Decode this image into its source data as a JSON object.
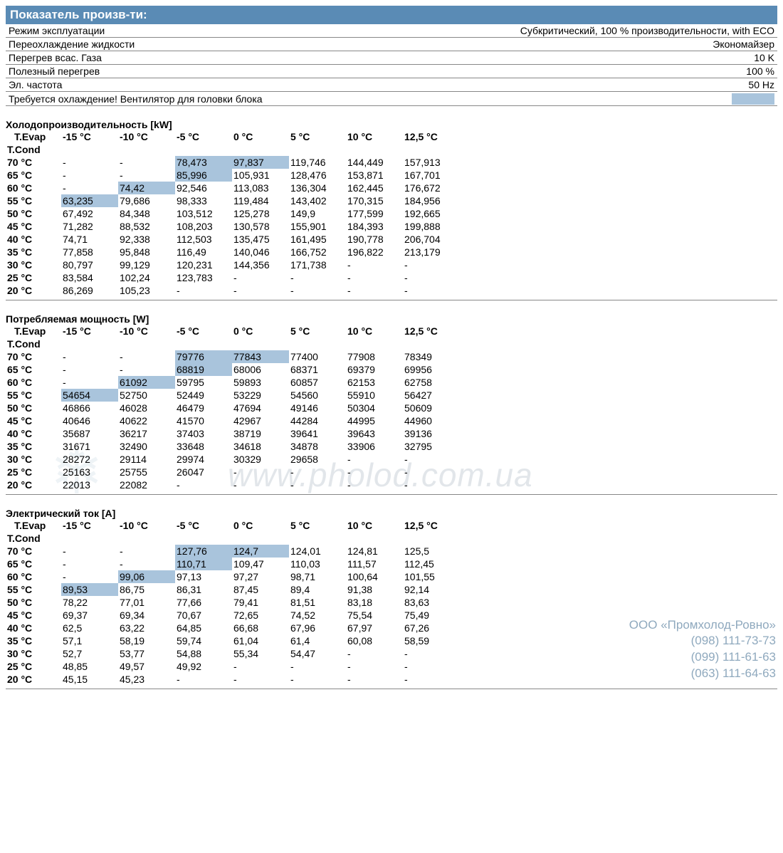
{
  "colors": {
    "header_bg": "#5a8bb5",
    "header_fg": "#ffffff",
    "highlight_bg": "#a9c4dc",
    "border": "#888888",
    "watermark": "#dfe4e8",
    "company_text": "#8fa9be"
  },
  "header": {
    "title": "Показатель произв-ти:"
  },
  "params": [
    {
      "label": "Режим эксплуатации",
      "value": "Субкритический, 100 % производительности, with ECO"
    },
    {
      "label": "Переохлаждение жидкости",
      "value": "Экономайзер"
    },
    {
      "label": "Перегрев всас. Газа",
      "value": "10 K"
    },
    {
      "label": "Полезный перегрев",
      "value": "100 %"
    },
    {
      "label": "Эл. частота",
      "value": "50 Hz"
    }
  ],
  "cooling_note": "Требуется охлаждение! Вентилятор для головки блока",
  "evap_cols": [
    "-15 °C",
    "-10 °C",
    "-5 °C",
    "0 °C",
    "5 °C",
    "10 °C",
    "12,5 °C"
  ],
  "evap_label": "T.Evap",
  "cond_label": "T.Cond",
  "tables": [
    {
      "title": "Холодопроизводительность [kW]",
      "rows": [
        {
          "cond": "70 °C",
          "cells": [
            {
              "v": "-"
            },
            {
              "v": "-"
            },
            {
              "v": "78,473",
              "hl": true
            },
            {
              "v": "97,837",
              "hl": true
            },
            {
              "v": "119,746"
            },
            {
              "v": "144,449"
            },
            {
              "v": "157,913"
            }
          ]
        },
        {
          "cond": "65 °C",
          "cells": [
            {
              "v": "-"
            },
            {
              "v": "-"
            },
            {
              "v": "85,996",
              "hl": true
            },
            {
              "v": "105,931"
            },
            {
              "v": "128,476"
            },
            {
              "v": "153,871"
            },
            {
              "v": "167,701"
            }
          ]
        },
        {
          "cond": "60 °C",
          "cells": [
            {
              "v": "-"
            },
            {
              "v": "74,42",
              "hl": true
            },
            {
              "v": "92,546"
            },
            {
              "v": "113,083"
            },
            {
              "v": "136,304"
            },
            {
              "v": "162,445"
            },
            {
              "v": "176,672"
            }
          ]
        },
        {
          "cond": "55 °C",
          "cells": [
            {
              "v": "63,235",
              "hl": true
            },
            {
              "v": "79,686"
            },
            {
              "v": "98,333"
            },
            {
              "v": "119,484"
            },
            {
              "v": "143,402"
            },
            {
              "v": "170,315"
            },
            {
              "v": "184,956"
            }
          ]
        },
        {
          "cond": "50 °C",
          "cells": [
            {
              "v": "67,492"
            },
            {
              "v": "84,348"
            },
            {
              "v": "103,512"
            },
            {
              "v": "125,278"
            },
            {
              "v": "149,9"
            },
            {
              "v": "177,599"
            },
            {
              "v": "192,665"
            }
          ]
        },
        {
          "cond": "45 °C",
          "cells": [
            {
              "v": "71,282"
            },
            {
              "v": "88,532"
            },
            {
              "v": "108,203"
            },
            {
              "v": "130,578"
            },
            {
              "v": "155,901"
            },
            {
              "v": "184,393"
            },
            {
              "v": "199,888"
            }
          ]
        },
        {
          "cond": "40 °C",
          "cells": [
            {
              "v": "74,71"
            },
            {
              "v": "92,338"
            },
            {
              "v": "112,503"
            },
            {
              "v": "135,475"
            },
            {
              "v": "161,495"
            },
            {
              "v": "190,778"
            },
            {
              "v": "206,704"
            }
          ]
        },
        {
          "cond": "35 °C",
          "cells": [
            {
              "v": "77,858"
            },
            {
              "v": "95,848"
            },
            {
              "v": "116,49"
            },
            {
              "v": "140,046"
            },
            {
              "v": "166,752"
            },
            {
              "v": "196,822"
            },
            {
              "v": "213,179"
            }
          ]
        },
        {
          "cond": "30 °C",
          "cells": [
            {
              "v": "80,797"
            },
            {
              "v": "99,129"
            },
            {
              "v": "120,231"
            },
            {
              "v": "144,356"
            },
            {
              "v": "171,738"
            },
            {
              "v": "-"
            },
            {
              "v": "-"
            }
          ]
        },
        {
          "cond": "25 °C",
          "cells": [
            {
              "v": "83,584"
            },
            {
              "v": "102,24"
            },
            {
              "v": "123,783"
            },
            {
              "v": "-"
            },
            {
              "v": "-"
            },
            {
              "v": "-"
            },
            {
              "v": "-"
            }
          ]
        },
        {
          "cond": "20 °C",
          "cells": [
            {
              "v": "86,269"
            },
            {
              "v": "105,23"
            },
            {
              "v": "-"
            },
            {
              "v": "-"
            },
            {
              "v": "-"
            },
            {
              "v": "-"
            },
            {
              "v": "-"
            }
          ]
        }
      ]
    },
    {
      "title": "Потребляемая мощность [W]",
      "rows": [
        {
          "cond": "70 °C",
          "cells": [
            {
              "v": "-"
            },
            {
              "v": "-"
            },
            {
              "v": "79776",
              "hl": true
            },
            {
              "v": "77843",
              "hl": true
            },
            {
              "v": "77400"
            },
            {
              "v": "77908"
            },
            {
              "v": "78349"
            }
          ]
        },
        {
          "cond": "65 °C",
          "cells": [
            {
              "v": "-"
            },
            {
              "v": "-"
            },
            {
              "v": "68819",
              "hl": true
            },
            {
              "v": "68006"
            },
            {
              "v": "68371"
            },
            {
              "v": "69379"
            },
            {
              "v": "69956"
            }
          ]
        },
        {
          "cond": "60 °C",
          "cells": [
            {
              "v": "-"
            },
            {
              "v": "61092",
              "hl": true
            },
            {
              "v": "59795"
            },
            {
              "v": "59893"
            },
            {
              "v": "60857"
            },
            {
              "v": "62153"
            },
            {
              "v": "62758"
            }
          ]
        },
        {
          "cond": "55 °C",
          "cells": [
            {
              "v": "54654",
              "hl": true
            },
            {
              "v": "52750"
            },
            {
              "v": "52449"
            },
            {
              "v": "53229"
            },
            {
              "v": "54560"
            },
            {
              "v": "55910"
            },
            {
              "v": "56427"
            }
          ]
        },
        {
          "cond": "50 °C",
          "cells": [
            {
              "v": "46866"
            },
            {
              "v": "46028"
            },
            {
              "v": "46479"
            },
            {
              "v": "47694"
            },
            {
              "v": "49146"
            },
            {
              "v": "50304"
            },
            {
              "v": "50609"
            }
          ]
        },
        {
          "cond": "45 °C",
          "cells": [
            {
              "v": "40646"
            },
            {
              "v": "40622"
            },
            {
              "v": "41570"
            },
            {
              "v": "42967"
            },
            {
              "v": "44284"
            },
            {
              "v": "44995"
            },
            {
              "v": "44960"
            }
          ]
        },
        {
          "cond": "40 °C",
          "cells": [
            {
              "v": "35687"
            },
            {
              "v": "36217"
            },
            {
              "v": "37403"
            },
            {
              "v": "38719"
            },
            {
              "v": "39641"
            },
            {
              "v": "39643"
            },
            {
              "v": "39136"
            }
          ]
        },
        {
          "cond": "35 °C",
          "cells": [
            {
              "v": "31671"
            },
            {
              "v": "32490"
            },
            {
              "v": "33648"
            },
            {
              "v": "34618"
            },
            {
              "v": "34878"
            },
            {
              "v": "33906"
            },
            {
              "v": "32795"
            }
          ]
        },
        {
          "cond": "30 °C",
          "cells": [
            {
              "v": "28272"
            },
            {
              "v": "29114"
            },
            {
              "v": "29974"
            },
            {
              "v": "30329"
            },
            {
              "v": "29658"
            },
            {
              "v": "-"
            },
            {
              "v": "-"
            }
          ]
        },
        {
          "cond": "25 °C",
          "cells": [
            {
              "v": "25163"
            },
            {
              "v": "25755"
            },
            {
              "v": "26047"
            },
            {
              "v": "-"
            },
            {
              "v": "-"
            },
            {
              "v": "-"
            },
            {
              "v": "-"
            }
          ]
        },
        {
          "cond": "20 °C",
          "cells": [
            {
              "v": "22013"
            },
            {
              "v": "22082"
            },
            {
              "v": "-"
            },
            {
              "v": "-"
            },
            {
              "v": "-"
            },
            {
              "v": "-"
            },
            {
              "v": "-"
            }
          ]
        }
      ]
    },
    {
      "title": "Электрический ток [A]",
      "rows": [
        {
          "cond": "70 °C",
          "cells": [
            {
              "v": "-"
            },
            {
              "v": "-"
            },
            {
              "v": "127,76",
              "hl": true
            },
            {
              "v": "124,7",
              "hl": true
            },
            {
              "v": "124,01"
            },
            {
              "v": "124,81"
            },
            {
              "v": "125,5"
            }
          ]
        },
        {
          "cond": "65 °C",
          "cells": [
            {
              "v": "-"
            },
            {
              "v": "-"
            },
            {
              "v": "110,71",
              "hl": true
            },
            {
              "v": "109,47"
            },
            {
              "v": "110,03"
            },
            {
              "v": "111,57"
            },
            {
              "v": "112,45"
            }
          ]
        },
        {
          "cond": "60 °C",
          "cells": [
            {
              "v": "-"
            },
            {
              "v": "99,06",
              "hl": true
            },
            {
              "v": "97,13"
            },
            {
              "v": "97,27"
            },
            {
              "v": "98,71"
            },
            {
              "v": "100,64"
            },
            {
              "v": "101,55"
            }
          ]
        },
        {
          "cond": "55 °C",
          "cells": [
            {
              "v": "89,53",
              "hl": true
            },
            {
              "v": "86,75"
            },
            {
              "v": "86,31"
            },
            {
              "v": "87,45"
            },
            {
              "v": "89,4"
            },
            {
              "v": "91,38"
            },
            {
              "v": "92,14"
            }
          ]
        },
        {
          "cond": "50 °C",
          "cells": [
            {
              "v": "78,22"
            },
            {
              "v": "77,01"
            },
            {
              "v": "77,66"
            },
            {
              "v": "79,41"
            },
            {
              "v": "81,51"
            },
            {
              "v": "83,18"
            },
            {
              "v": "83,63"
            }
          ]
        },
        {
          "cond": "45 °C",
          "cells": [
            {
              "v": "69,37"
            },
            {
              "v": "69,34"
            },
            {
              "v": "70,67"
            },
            {
              "v": "72,65"
            },
            {
              "v": "74,52"
            },
            {
              "v": "75,54"
            },
            {
              "v": "75,49"
            }
          ]
        },
        {
          "cond": "40 °C",
          "cells": [
            {
              "v": "62,5"
            },
            {
              "v": "63,22"
            },
            {
              "v": "64,85"
            },
            {
              "v": "66,68"
            },
            {
              "v": "67,96"
            },
            {
              "v": "67,97"
            },
            {
              "v": "67,26"
            }
          ]
        },
        {
          "cond": "35 °C",
          "cells": [
            {
              "v": "57,1"
            },
            {
              "v": "58,19"
            },
            {
              "v": "59,74"
            },
            {
              "v": "61,04"
            },
            {
              "v": "61,4"
            },
            {
              "v": "60,08"
            },
            {
              "v": "58,59"
            }
          ]
        },
        {
          "cond": "30 °C",
          "cells": [
            {
              "v": "52,7"
            },
            {
              "v": "53,77"
            },
            {
              "v": "54,88"
            },
            {
              "v": "55,34"
            },
            {
              "v": "54,47"
            },
            {
              "v": "-"
            },
            {
              "v": "-"
            }
          ]
        },
        {
          "cond": "25 °C",
          "cells": [
            {
              "v": "48,85"
            },
            {
              "v": "49,57"
            },
            {
              "v": "49,92"
            },
            {
              "v": "-"
            },
            {
              "v": "-"
            },
            {
              "v": "-"
            },
            {
              "v": "-"
            }
          ]
        },
        {
          "cond": "20 °C",
          "cells": [
            {
              "v": "45,15"
            },
            {
              "v": "45,23"
            },
            {
              "v": "-"
            },
            {
              "v": "-"
            },
            {
              "v": "-"
            },
            {
              "v": "-"
            },
            {
              "v": "-"
            }
          ]
        }
      ]
    }
  ],
  "watermark": {
    "logo": "❄",
    "url": "www.pholod.com.ua"
  },
  "company": {
    "name": "ООО «Промхолод-Ровно»",
    "phones": [
      "(098) 111-73-73",
      "(099) 111-61-63",
      "(063) 111-64-63"
    ]
  }
}
